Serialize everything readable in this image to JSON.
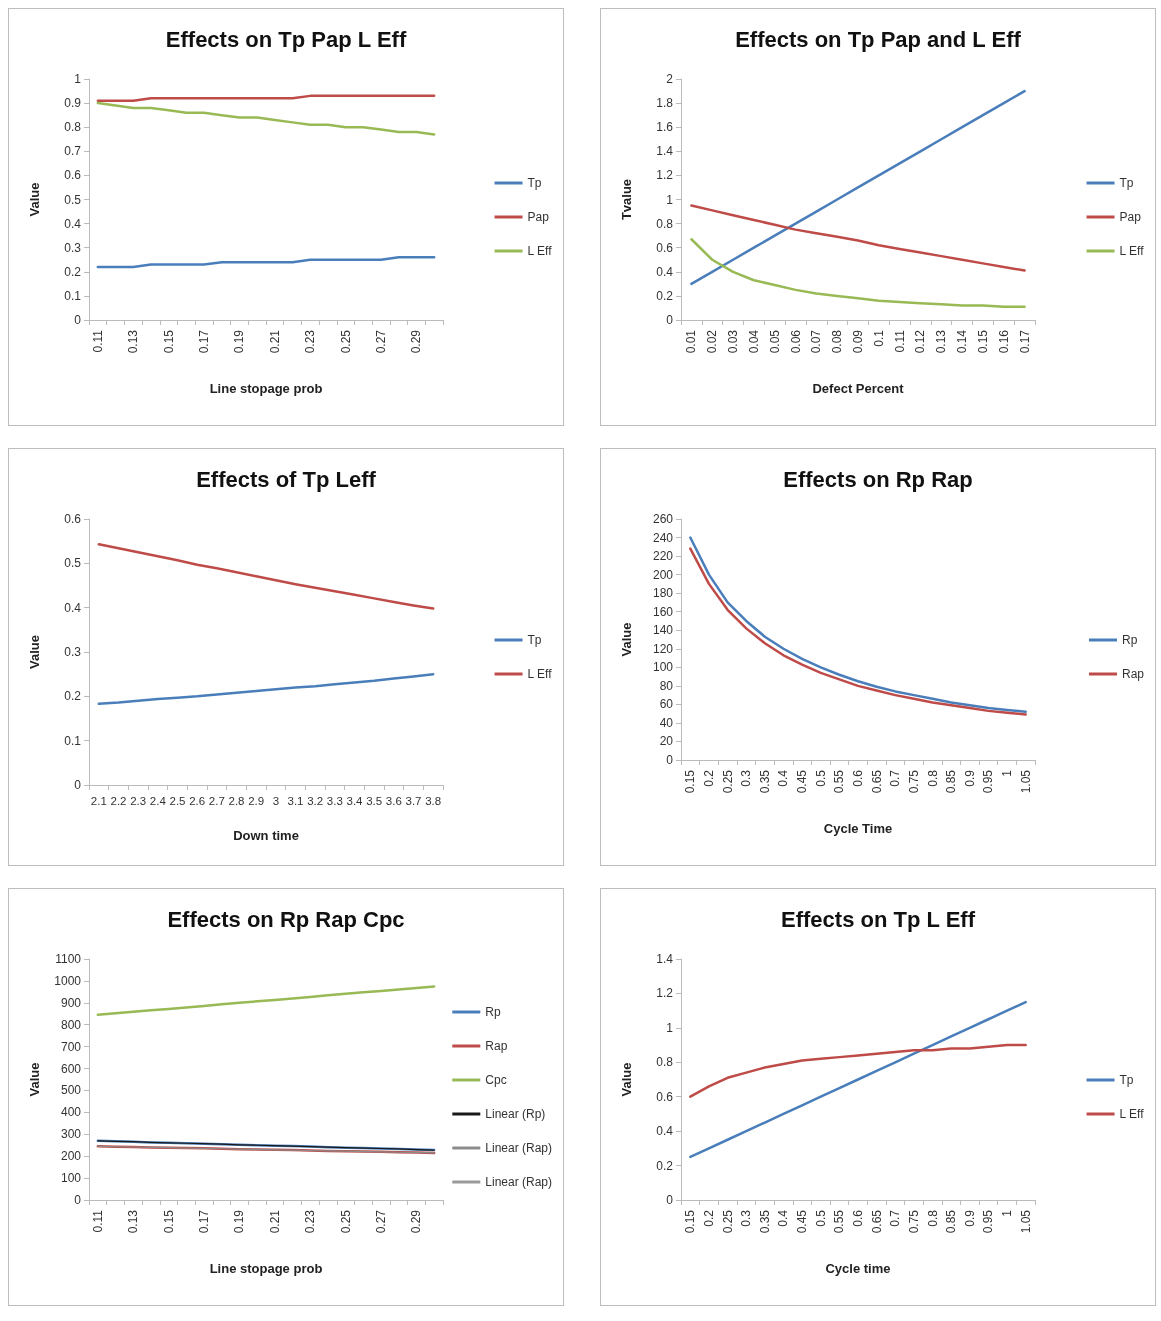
{
  "chart_data": [
    {
      "type": "line",
      "title": "Effects on Tp Pap L Eff",
      "xlabel": "Line stopage prob",
      "ylabel": "Value",
      "categories": [
        "0.11",
        null,
        "0.13",
        null,
        "0.15",
        null,
        "0.17",
        null,
        "0.19",
        null,
        "0.21",
        null,
        "0.23",
        null,
        "0.25",
        null,
        "0.27",
        null,
        "0.29",
        null
      ],
      "series": [
        {
          "name": "Tp",
          "color": "#4a7ebb",
          "values": [
            0.22,
            0.22,
            0.22,
            0.23,
            0.23,
            0.23,
            0.23,
            0.24,
            0.24,
            0.24,
            0.24,
            0.24,
            0.25,
            0.25,
            0.25,
            0.25,
            0.25,
            0.26,
            0.26,
            0.26
          ]
        },
        {
          "name": "Pap",
          "color": "#be4b48",
          "values": [
            0.91,
            0.91,
            0.91,
            0.92,
            0.92,
            0.92,
            0.92,
            0.92,
            0.92,
            0.92,
            0.92,
            0.92,
            0.93,
            0.93,
            0.93,
            0.93,
            0.93,
            0.93,
            0.93,
            0.93
          ]
        },
        {
          "name": "L Eff",
          "color": "#98b954",
          "values": [
            0.9,
            0.89,
            0.88,
            0.88,
            0.87,
            0.86,
            0.86,
            0.85,
            0.84,
            0.84,
            0.83,
            0.82,
            0.81,
            0.81,
            0.8,
            0.8,
            0.79,
            0.78,
            0.78,
            0.77
          ]
        }
      ],
      "ylim": [
        0,
        1
      ],
      "yticks": [
        0,
        0.1,
        0.2,
        0.3,
        0.4,
        0.5,
        0.6,
        0.7,
        0.8,
        0.9,
        1
      ],
      "legend": "right",
      "marker": "none"
    },
    {
      "type": "line",
      "title": "Effects on Tp Pap and L Eff",
      "xlabel": "Defect Percent",
      "ylabel": "Tvalue",
      "categories": [
        "0.01",
        "0.02",
        "0.03",
        "0.04",
        "0.05",
        "0.06",
        "0.07",
        "0.08",
        "0.09",
        "0.1",
        "0.11",
        "0.12",
        "0.13",
        "0.14",
        "0.15",
        "0.16",
        "0.17"
      ],
      "series": [
        {
          "name": "Tp",
          "color": "#4a7ebb",
          "values": [
            0.3,
            0.4,
            0.5,
            0.6,
            0.7,
            0.8,
            0.9,
            1.0,
            1.1,
            1.2,
            1.3,
            1.4,
            1.5,
            1.6,
            1.7,
            1.8,
            1.9
          ]
        },
        {
          "name": "Pap",
          "color": "#be4b48",
          "values": [
            0.95,
            0.91,
            0.87,
            0.83,
            0.79,
            0.75,
            0.72,
            0.69,
            0.66,
            0.62,
            0.59,
            0.56,
            0.53,
            0.5,
            0.47,
            0.44,
            0.41
          ]
        },
        {
          "name": "L Eff",
          "color": "#98b954",
          "values": [
            0.67,
            0.5,
            0.4,
            0.33,
            0.29,
            0.25,
            0.22,
            0.2,
            0.18,
            0.16,
            0.15,
            0.14,
            0.13,
            0.12,
            0.12,
            0.11,
            0.11
          ]
        }
      ],
      "ylim": [
        0,
        2
      ],
      "yticks": [
        0,
        0.2,
        0.4,
        0.6,
        0.8,
        1,
        1.2,
        1.4,
        1.6,
        1.8,
        2
      ],
      "legend": "right",
      "marker": "none"
    },
    {
      "type": "line",
      "title": "Effects of Tp Leff",
      "xlabel": "Down time",
      "ylabel": "Value",
      "categories": [
        "2.1",
        "2.2",
        "2.3",
        "2.4",
        "2.5",
        "2.6",
        "2.7",
        "2.8",
        "2.9",
        "3",
        "3.1",
        "3.2",
        "3.3",
        "3.4",
        "3.5",
        "3.6",
        "3.7",
        "3.8"
      ],
      "series": [
        {
          "name": "Tp",
          "color": "#4a7ebb",
          "values": [
            0.183,
            0.186,
            0.19,
            0.194,
            0.197,
            0.2,
            0.204,
            0.208,
            0.212,
            0.216,
            0.22,
            0.223,
            0.227,
            0.231,
            0.235,
            0.24,
            0.245,
            0.25
          ]
        },
        {
          "name": "L Eff",
          "color": "#be4b48",
          "values": [
            0.543,
            0.534,
            0.525,
            0.516,
            0.507,
            0.497,
            0.489,
            0.48,
            0.471,
            0.462,
            0.453,
            0.445,
            0.437,
            0.429,
            0.421,
            0.413,
            0.405,
            0.398
          ]
        }
      ],
      "ylim": [
        0,
        0.6
      ],
      "yticks": [
        0,
        0.1,
        0.2,
        0.3,
        0.4,
        0.5,
        0.6
      ],
      "legend": "right",
      "marker": "none"
    },
    {
      "type": "line",
      "title": "Effects on Rp Rap",
      "xlabel": "Cycle Time",
      "ylabel": "Value",
      "categories": [
        "0.15",
        "0.2",
        "0.25",
        "0.3",
        "0.35",
        "0.4",
        "0.45",
        "0.5",
        "0.55",
        "0.6",
        "0.65",
        "0.7",
        "0.75",
        "0.8",
        "0.85",
        "0.9",
        "0.95",
        "1",
        "1.05"
      ],
      "series": [
        {
          "name": "Rp",
          "color": "#4a7ebb",
          "values": [
            240,
            200,
            170,
            150,
            133,
            120,
            109,
            100,
            92,
            85,
            79,
            74,
            70,
            66,
            62,
            59,
            56,
            54,
            52
          ]
        },
        {
          "name": "Rap",
          "color": "#be4b48",
          "values": [
            228,
            190,
            162,
            142,
            126,
            113,
            103,
            94,
            87,
            80,
            75,
            70,
            66,
            62,
            59,
            56,
            53,
            51,
            49
          ]
        }
      ],
      "ylim": [
        0,
        260
      ],
      "yticks": [
        0,
        20,
        40,
        60,
        80,
        100,
        120,
        140,
        160,
        180,
        200,
        220,
        240,
        260
      ],
      "legend": "right",
      "marker": "none"
    },
    {
      "type": "line",
      "title": "Effects on Rp Rap Cpc",
      "xlabel": "Line stopage prob",
      "ylabel": "Value",
      "categories": [
        "0.11",
        null,
        "0.13",
        null,
        "0.15",
        null,
        "0.17",
        null,
        "0.19",
        null,
        "0.21",
        null,
        "0.23",
        null,
        "0.25",
        null,
        "0.27",
        null,
        "0.29",
        null
      ],
      "series": [
        {
          "name": "Rp",
          "color": "#4a7ebb",
          "values": [
            270,
            268,
            266,
            263,
            261,
            259,
            257,
            255,
            252,
            250,
            248,
            246,
            244,
            241,
            239,
            237,
            235,
            233,
            230,
            228
          ]
        },
        {
          "name": "Rap",
          "color": "#be4b48",
          "values": [
            245,
            243,
            242,
            240,
            239,
            237,
            236,
            234,
            232,
            231,
            229,
            228,
            226,
            224,
            223,
            221,
            220,
            218,
            217,
            215
          ]
        },
        {
          "name": "Cpc",
          "color": "#98b954",
          "values": [
            845,
            852,
            859,
            866,
            872,
            879,
            886,
            893,
            900,
            907,
            913,
            920,
            927,
            934,
            941,
            948,
            954,
            961,
            968,
            975
          ]
        },
        {
          "name": "Linear (Rp)",
          "color": "#1a1a1a",
          "values": [
            270,
            268,
            266,
            263,
            261,
            259,
            257,
            255,
            252,
            250,
            248,
            246,
            244,
            241,
            239,
            237,
            235,
            233,
            230,
            228
          ]
        },
        {
          "name": "Linear (Rap)",
          "color": "#8c8c8c",
          "values": [
            245,
            243,
            242,
            240,
            239,
            237,
            236,
            234,
            232,
            231,
            229,
            228,
            226,
            224,
            223,
            221,
            220,
            218,
            217,
            215
          ]
        },
        {
          "name": "Linear (Rap)",
          "color": "#9a9a9a",
          "values": [
            null,
            null,
            null,
            null,
            null,
            null,
            null,
            null,
            null,
            null,
            null,
            null,
            null,
            null,
            null,
            null,
            null,
            null,
            null,
            null
          ]
        }
      ],
      "ylim": [
        0,
        1100
      ],
      "yticks": [
        0,
        100,
        200,
        300,
        400,
        500,
        600,
        700,
        800,
        900,
        1000,
        1100
      ],
      "legend": "right",
      "marker": "none"
    },
    {
      "type": "line",
      "title": "Effects on Tp L Eff",
      "xlabel": "Cycle time",
      "ylabel": "Value",
      "categories": [
        "0.15",
        "0.2",
        "0.25",
        "0.3",
        "0.35",
        "0.4",
        "0.45",
        "0.5",
        "0.55",
        "0.6",
        "0.65",
        "0.7",
        "0.75",
        "0.8",
        "0.85",
        "0.9",
        "0.95",
        "1",
        "1.05"
      ],
      "series": [
        {
          "name": "Tp",
          "color": "#4a7ebb",
          "values": [
            0.25,
            0.3,
            0.35,
            0.4,
            0.45,
            0.5,
            0.55,
            0.6,
            0.65,
            0.7,
            0.75,
            0.8,
            0.85,
            0.9,
            0.95,
            1.0,
            1.05,
            1.1,
            1.15
          ]
        },
        {
          "name": "L Eff",
          "color": "#be4b48",
          "values": [
            0.6,
            0.66,
            0.71,
            0.74,
            0.77,
            0.79,
            0.81,
            0.82,
            0.83,
            0.84,
            0.85,
            0.86,
            0.87,
            0.87,
            0.88,
            0.88,
            0.89,
            0.9,
            0.9
          ]
        }
      ],
      "ylim": [
        0,
        1.4
      ],
      "yticks": [
        0,
        0.2,
        0.4,
        0.6,
        0.8,
        1,
        1.2,
        1.4
      ],
      "legend": "right",
      "marker": "none"
    }
  ]
}
